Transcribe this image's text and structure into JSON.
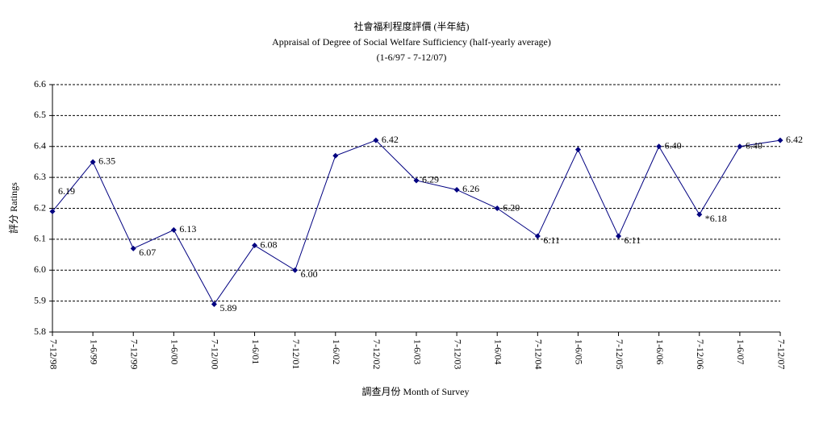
{
  "chart_data": {
    "type": "line",
    "title": "社會福利程度評價 (半年結)",
    "subtitle": "Appraisal of Degree of Social Welfare Sufficiency (half-yearly average)",
    "period": "(1-6/97 - 7-12/07)",
    "ylabel": "評分 Ratings",
    "xlabel": "調查月份 Month of Survey",
    "categories": [
      "7-12/98",
      "1-6/99",
      "7-12/99",
      "1-6/00",
      "7-12/00",
      "1-6/01",
      "7-12/01",
      "1-6/02",
      "7-12/02",
      "1-6/03",
      "7-12/03",
      "1-6/04",
      "7-12/04",
      "1-6/05",
      "7-12/05",
      "1-6/06",
      "7-12/06",
      "1-6/07",
      "7-12/07"
    ],
    "series": [
      {
        "color": "#000080",
        "values": [
          6.19,
          6.35,
          6.07,
          6.13,
          5.89,
          6.08,
          6.0,
          6.37,
          6.42,
          6.29,
          6.26,
          6.2,
          6.11,
          6.39,
          6.11,
          6.4,
          6.18,
          6.4,
          6.42
        ],
        "value_labels": [
          "6.19",
          "6.35",
          "6.07",
          "6.13",
          "5.89",
          "6.08",
          "6.00",
          null,
          "6.42",
          "6.29",
          "6.26",
          "6.20",
          "6.11",
          null,
          "6.11",
          "6.40",
          "*6.18",
          "6.40",
          "6.42"
        ]
      }
    ],
    "ylim": [
      5.8,
      6.6
    ],
    "yticks": [
      5.8,
      5.9,
      {
        "value": 6,
        "label": "6.0"
      },
      6.1,
      6.2,
      6.3,
      6.4,
      6.5,
      6.6
    ],
    "grid": true
  }
}
